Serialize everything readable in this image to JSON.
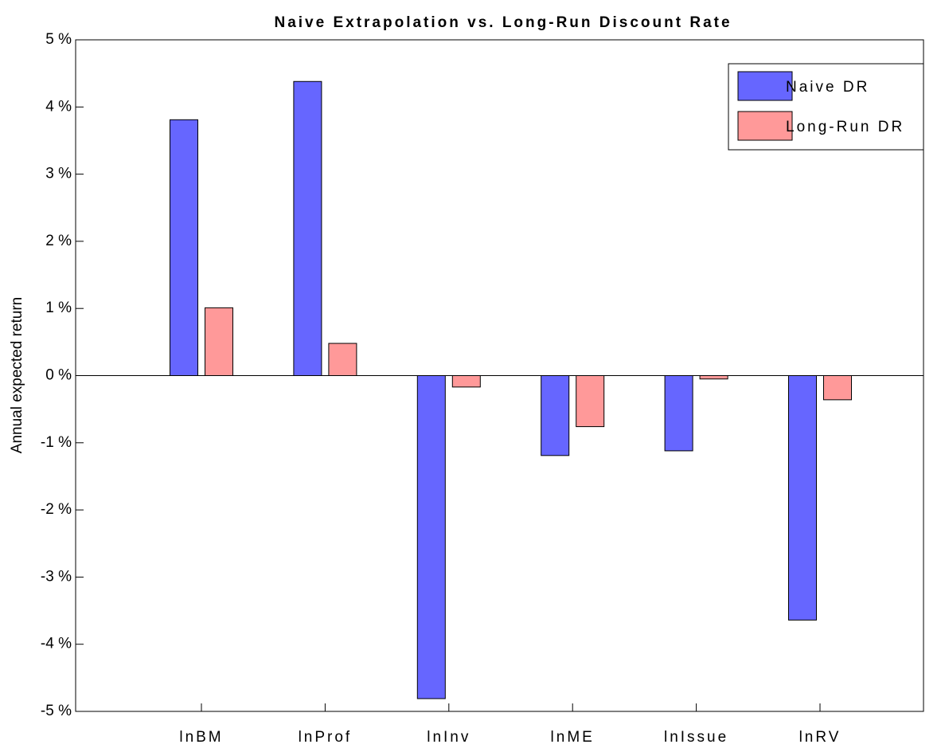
{
  "chart_data": {
    "type": "bar",
    "title": "Naive Extrapolation vs. Long-Run Discount Rate",
    "y_label": "Annual expected return",
    "categories": [
      "lnBM",
      "lnProf",
      "lnInv",
      "lnME",
      "lnIssue",
      "lnRV"
    ],
    "series": [
      {
        "name": "Naive DR",
        "color": "#6666ff",
        "values": [
          3.81,
          4.38,
          -4.81,
          -1.19,
          -1.12,
          -3.64
        ]
      },
      {
        "name": "Long-Run DR",
        "color": "#ff9999",
        "values": [
          1.01,
          0.48,
          -0.17,
          -0.76,
          -0.05,
          -0.36
        ]
      }
    ],
    "ylim": [
      -5,
      5
    ],
    "yticks": [
      {
        "value": -5,
        "label": "-5 %"
      },
      {
        "value": -4,
        "label": "-4 %"
      },
      {
        "value": -3,
        "label": "-3 %"
      },
      {
        "value": -2,
        "label": "-2 %"
      },
      {
        "value": -1,
        "label": "-1 %"
      },
      {
        "value": 0,
        "label": "0 %"
      },
      {
        "value": 1,
        "label": "1 %"
      },
      {
        "value": 2,
        "label": "2 %"
      },
      {
        "value": 3,
        "label": "3 %"
      },
      {
        "value": 4,
        "label": "4 %"
      },
      {
        "value": 5,
        "label": "5 %"
      }
    ],
    "legend": "upper right",
    "grid": false
  }
}
